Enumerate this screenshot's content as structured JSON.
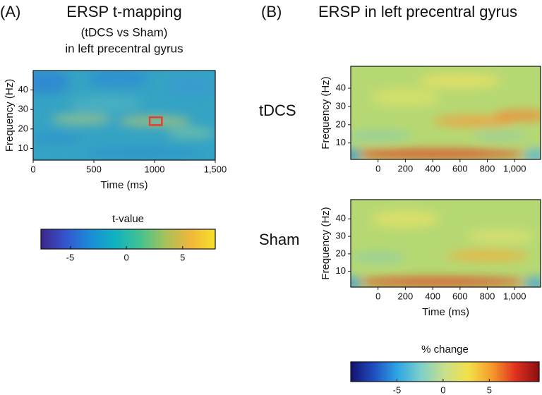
{
  "panels": [
    {
      "label": "(A)",
      "title": "ERSP t-mapping",
      "subtitle": [
        "(tDCS vs Sham)",
        "in left precentral gyrus"
      ]
    },
    {
      "label": "(B)",
      "title": "ERSP in left precentral gyrus"
    }
  ],
  "chart_data": [
    {
      "type": "heatmap",
      "xlabel": "Time (ms)",
      "ylabel": "Frequency (Hz)",
      "xlim": [
        0,
        1500
      ],
      "xticks": [
        0,
        500,
        1000,
        {
          "value": 1500,
          "label": "1,500"
        }
      ],
      "ylim": [
        4,
        50
      ],
      "yticks": [
        10,
        20,
        30,
        40
      ]
    },
    {
      "type": "colorbar",
      "label": "t-value",
      "lim": [
        -7.6,
        7.9
      ],
      "ticks": [
        -5,
        0,
        5
      ],
      "colormap": [
        "#3e268a",
        "#3555d0",
        "#1a8ed8",
        "#10b3c0",
        "#44c28f",
        "#a7c25a",
        "#f0b63c",
        "#f6e02a"
      ]
    },
    {
      "type": "heatmap",
      "label": "tDCS",
      "ylabel": "Frequency (Hz)",
      "xlim": [
        -200,
        1190
      ],
      "xticks": [
        0,
        200,
        400,
        600,
        800,
        {
          "value": 1000,
          "label": "1,000"
        }
      ],
      "ylim": [
        1,
        52
      ],
      "yticks": [
        10,
        20,
        30,
        40
      ]
    },
    {
      "type": "heatmap",
      "label": "Sham",
      "xlabel": "Time (ms)",
      "ylabel": "Frequency (Hz)",
      "xlim": [
        -200,
        1190
      ],
      "xticks": [
        0,
        200,
        400,
        600,
        800,
        {
          "value": 1000,
          "label": "1,000"
        }
      ],
      "ylim": [
        1,
        51
      ],
      "yticks": [
        10,
        20,
        30,
        40
      ]
    },
    {
      "type": "colorbar",
      "label": "% change",
      "lim": [
        -10,
        10.4
      ],
      "ticks": [
        -5,
        0,
        5
      ],
      "colormap": [
        "#12126e",
        "#1f4fc0",
        "#2ea7e6",
        "#7fd0c8",
        "#c8e08a",
        "#f3e04a",
        "#f49a2a",
        "#e0301e",
        "#8a0f12"
      ]
    }
  ]
}
